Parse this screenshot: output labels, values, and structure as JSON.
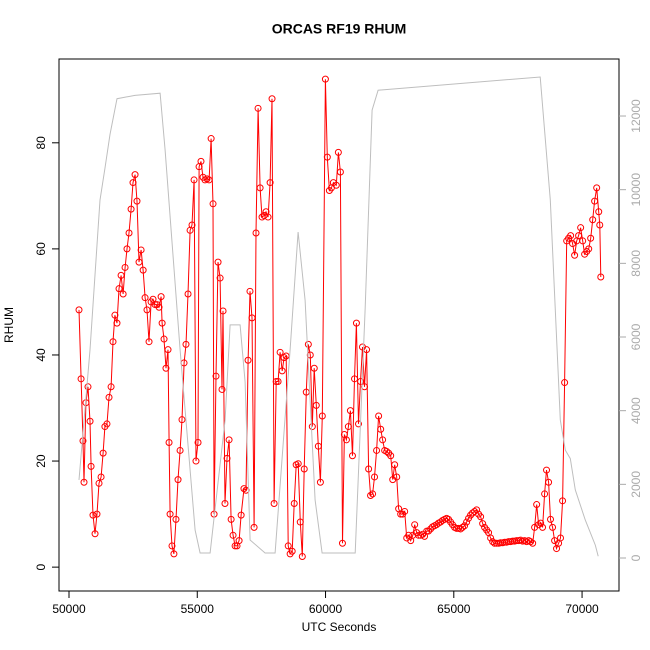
{
  "chart_data": {
    "type": "line",
    "title": "ORCAS RF19 RHUM",
    "xlabel": "UTC Seconds",
    "ylabel": "RHUM",
    "xlim": [
      49610,
      71440
    ],
    "ylim": [
      -4.5,
      95.8
    ],
    "y2lim": [
      -896,
      13548
    ],
    "xticks": [
      50000,
      55000,
      60000,
      65000,
      70000
    ],
    "yticks": [
      0,
      20,
      40,
      60,
      80
    ],
    "y2ticks": [
      0,
      2000,
      4000,
      6000,
      8000,
      10000,
      12000
    ],
    "y2tick_color": "#aaaaaa",
    "series": [
      {
        "color": "#ff0000",
        "markers": true,
        "x": [
          50390,
          50470,
          50545,
          50585,
          50660,
          50740,
          50820,
          50860,
          50935,
          51015,
          51090,
          51170,
          51250,
          51330,
          51400,
          51480,
          51560,
          51640,
          51715,
          51790,
          51870,
          51950,
          52030,
          52110,
          52185,
          52260,
          52340,
          52420,
          52495,
          52575,
          52650,
          52730,
          52810,
          52890,
          52965,
          53040,
          53120,
          53200,
          53275,
          53355,
          53430,
          53510,
          53590,
          53630,
          53705,
          53780,
          53860,
          53900,
          53940,
          54015,
          54090,
          54170,
          54250,
          54330,
          54405,
          54485,
          54560,
          54640,
          54720,
          54795,
          54875,
          54950,
          55030,
          55070,
          55145,
          55225,
          55300,
          55380,
          55460,
          55540,
          55615,
          55655,
          55730,
          55810,
          55890,
          55965,
          56005,
          56080,
          56160,
          56240,
          56320,
          56395,
          56475,
          56550,
          56630,
          56710,
          56820,
          56900,
          56980,
          57055,
          57135,
          57215,
          57290,
          57370,
          57450,
          57525,
          57605,
          57680,
          57760,
          57840,
          57915,
          57995,
          58075,
          58150,
          58230,
          58310,
          58385,
          58465,
          58545,
          58620,
          58700,
          58780,
          58855,
          58935,
          59015,
          59095,
          59170,
          59250,
          59330,
          59405,
          59485,
          59560,
          59640,
          59720,
          59800,
          59875,
          59995,
          60070,
          60150,
          60230,
          60305,
          60420,
          60500,
          60580,
          60660,
          60735,
          60815,
          60890,
          60970,
          61050,
          61130,
          61205,
          61285,
          61365,
          61440,
          61520,
          61600,
          61680,
          61755,
          61835,
          61910,
          61990,
          62070,
          62150,
          62225,
          62305,
          62385,
          62460,
          62540,
          62620,
          62695,
          62775,
          62850,
          62930,
          63005,
          63085,
          63165,
          63240,
          63320,
          63400,
          63475,
          63555,
          63630,
          63710,
          63790,
          63860,
          63945,
          64015,
          64095,
          64170,
          64250,
          64330,
          64405,
          64485,
          64560,
          64640,
          64720,
          64795,
          64875,
          64950,
          65030,
          65110,
          65185,
          65265,
          65340,
          65420,
          65500,
          65575,
          65655,
          65730,
          65810,
          65890,
          65965,
          66045,
          66125,
          66200,
          66280,
          66355,
          66435,
          66515,
          66590,
          66670,
          66750,
          66825,
          66905,
          66985,
          67060,
          67140,
          67215,
          67295,
          67370,
          67450,
          67530,
          67605,
          67685,
          67760,
          67840,
          67920,
          67995,
          68075,
          68150,
          68230,
          68305,
          68385,
          68460,
          68540,
          68615,
          68695,
          68770,
          68850,
          68930,
          69005,
          69085,
          69160,
          69240,
          69320,
          69400,
          69475,
          69555,
          69630,
          69710,
          69790,
          69865,
          69945,
          70025,
          70100,
          70180,
          70260,
          70335,
          70415,
          70490,
          70570,
          70650,
          70690,
          70730
        ],
        "values": [
          48.5,
          35.5,
          23.8,
          16,
          31,
          34,
          27.5,
          19,
          9.8,
          6.3,
          10,
          15.8,
          17,
          21.5,
          26.5,
          27,
          32,
          34,
          42.5,
          47.5,
          46,
          52.5,
          55,
          51.5,
          56.5,
          60,
          63,
          67.5,
          72.5,
          74,
          69,
          57.5,
          59.8,
          56,
          50.8,
          48.5,
          42.5,
          50,
          50.5,
          49.5,
          49.5,
          49,
          51,
          46,
          43,
          37.5,
          41,
          23.5,
          10,
          4,
          2.5,
          9,
          16.5,
          22,
          27.8,
          38.5,
          42,
          51.5,
          63.5,
          64.5,
          73,
          20,
          23.5,
          75.5,
          76.5,
          73.5,
          73,
          73.2,
          73,
          80.8,
          68.5,
          10,
          36,
          57.5,
          54.5,
          33.5,
          48.3,
          12,
          20.5,
          24,
          9,
          6,
          4,
          4,
          5,
          9.8,
          14.8,
          14.5,
          39,
          52,
          47,
          7.5,
          63,
          86.5,
          71.5,
          66,
          66.3,
          67,
          66,
          72.5,
          88.3,
          12,
          35,
          35,
          40.5,
          37,
          39.5,
          39.8,
          4,
          2.5,
          3,
          12,
          19.3,
          19.5,
          8.5,
          2,
          18.5,
          33,
          42,
          40,
          26.5,
          37.5,
          30.5,
          22.8,
          16,
          28.5,
          92,
          77.3,
          71,
          71.5,
          72.5,
          72,
          78.2,
          74.5,
          4.5,
          25,
          24,
          26.5,
          29.5,
          21,
          35.5,
          46,
          27,
          35,
          41.5,
          34,
          41,
          18.5,
          13.5,
          13.8,
          17,
          22,
          28.5,
          26,
          24,
          22,
          21.8,
          21.5,
          21,
          16.5,
          19.3,
          17,
          11,
          10,
          10,
          10.5,
          5.5,
          6,
          5,
          6,
          8,
          6.5,
          6,
          6,
          6.2,
          5.8,
          6.8,
          6.8,
          7.2,
          7.6,
          7.8,
          8,
          8.3,
          8.5,
          8.8,
          9,
          9.2,
          9,
          8.5,
          8,
          7.5,
          7.3,
          7.3,
          7.2,
          7.5,
          7.8,
          8.5,
          9.2,
          9.8,
          10.2,
          10.5,
          10.8,
          10,
          9.5,
          8.2,
          7.5,
          7,
          6.5,
          5.5,
          4.8,
          4.5,
          4.5,
          4.5,
          4.6,
          4.6,
          4.7,
          4.7,
          4.8,
          4.8,
          4.9,
          4.9,
          5,
          5,
          5.1,
          4.9,
          5,
          4.8,
          5,
          4.8,
          4.5,
          7.5,
          11.8,
          8,
          8.3,
          7.5,
          13.8,
          18.3,
          16,
          9,
          7.5,
          5,
          3.5,
          4.5,
          5.5,
          12.5,
          34.8,
          61.5,
          62,
          62.5,
          61,
          58.8,
          61.5,
          62.5,
          64,
          61.5,
          59,
          59.5,
          60,
          62,
          65.5,
          69,
          71.5,
          67,
          64.5,
          54.7
        ]
      },
      {
        "color": "#bebebe",
        "axis": "y2",
        "markers": false,
        "x": [
          50390,
          50820,
          51210,
          51405,
          51600,
          51870,
          52570,
          53550,
          53745,
          54330,
          54915,
          55110,
          55500,
          56085,
          56280,
          56670,
          56865,
          57060,
          57645,
          58035,
          58620,
          58930,
          59205,
          59595,
          59865,
          61155,
          61545,
          61815,
          62050,
          68370,
          68760,
          69150,
          69345,
          69540,
          69735,
          70125,
          70515,
          70630
        ],
        "values": [
          2120,
          5650,
          9720,
          10590,
          11500,
          12470,
          12560,
          12620,
          11080,
          5650,
          760,
          135,
          135,
          3750,
          6330,
          6330,
          4780,
          490,
          135,
          135,
          5650,
          8850,
          7000,
          1575,
          135,
          135,
          6800,
          12160,
          12700,
          13060,
          9720,
          3750,
          2930,
          2700,
          1850,
          1030,
          350,
          50
        ]
      }
    ]
  }
}
